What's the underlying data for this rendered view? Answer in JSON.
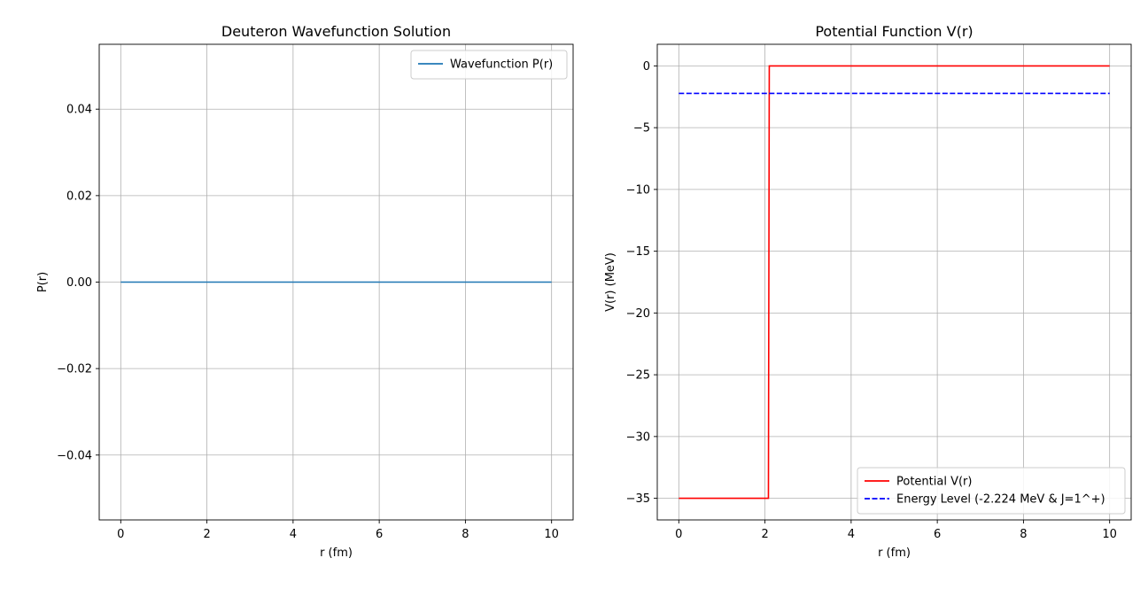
{
  "chart_data": [
    {
      "type": "line",
      "title": "Deuteron Wavefunction Solution",
      "xlabel": "r (fm)",
      "ylabel": "P(r)",
      "xlim": [
        -0.5,
        10.5
      ],
      "ylim": [
        -0.055,
        0.055
      ],
      "xticks": [
        0,
        2,
        4,
        6,
        8,
        10
      ],
      "xtick_labels": [
        "0",
        "2",
        "4",
        "6",
        "8",
        "10"
      ],
      "yticks": [
        -0.04,
        -0.02,
        0.0,
        0.02,
        0.04
      ],
      "ytick_labels": [
        "−0.04",
        "−0.02",
        "0.00",
        "0.02",
        "0.04"
      ],
      "grid": true,
      "legend_position": "upper right",
      "series": [
        {
          "name": "Wavefunction P(r)",
          "color": "#1f77b4",
          "style": "solid",
          "x": [
            0,
            10
          ],
          "y": [
            0,
            0
          ]
        }
      ]
    },
    {
      "type": "line",
      "title": "Potential Function V(r)",
      "xlabel": "r (fm)",
      "ylabel": "V(r) (MeV)",
      "xlim": [
        -0.5,
        10.5
      ],
      "ylim": [
        -36.75,
        1.75
      ],
      "xticks": [
        0,
        2,
        4,
        6,
        8,
        10
      ],
      "xtick_labels": [
        "0",
        "2",
        "4",
        "6",
        "8",
        "10"
      ],
      "yticks": [
        0,
        -5,
        -10,
        -15,
        -20,
        -25,
        -30,
        -35
      ],
      "ytick_labels": [
        "0",
        "−5",
        "−10",
        "−15",
        "−20",
        "−25",
        "−30",
        "−35"
      ],
      "grid": true,
      "legend_position": "lower right",
      "series": [
        {
          "name": "Potential V(r)",
          "color": "#ff0000",
          "style": "solid",
          "x": [
            0,
            2.08,
            2.1,
            10
          ],
          "y": [
            -35,
            -35,
            0,
            0
          ]
        },
        {
          "name": "Energy Level (-2.224 MeV & J=1^+)",
          "color": "#0000ff",
          "style": "dashed",
          "x": [
            0,
            10
          ],
          "y": [
            -2.224,
            -2.224
          ]
        }
      ]
    }
  ]
}
